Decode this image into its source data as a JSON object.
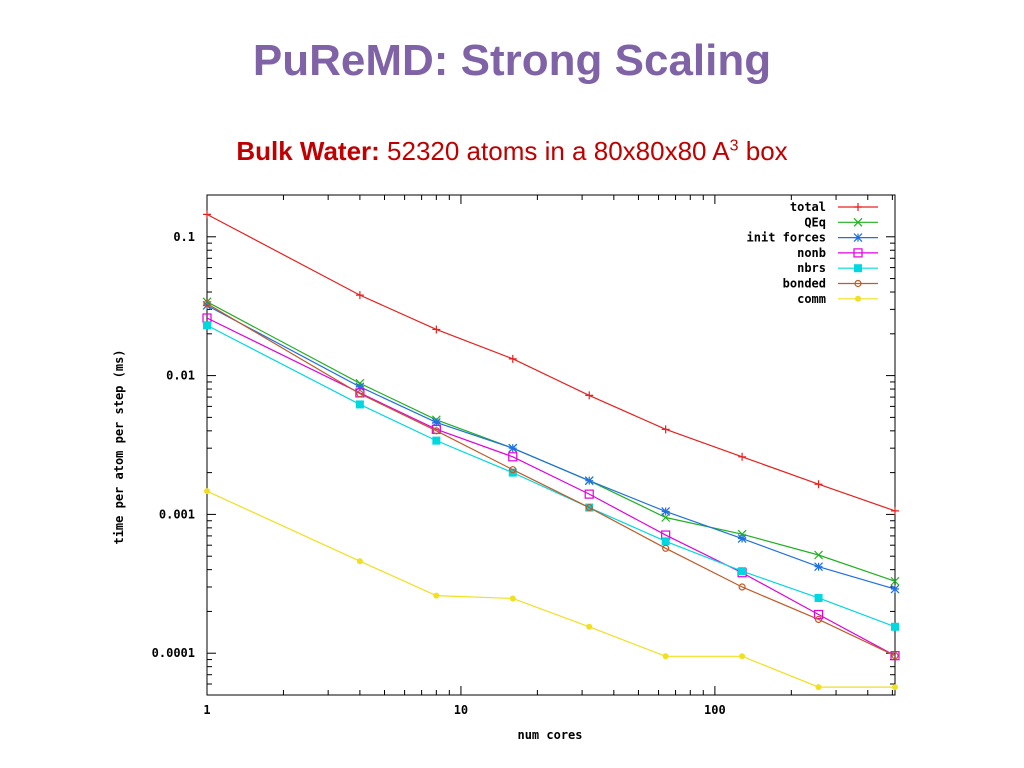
{
  "slide": {
    "title": "PuReMD: Strong Scaling",
    "subtitle_bold": "Bulk Water:",
    "subtitle_text": " 52320 atoms in a 80x80x80 A",
    "subtitle_sup": "3",
    "subtitle_tail": " box"
  },
  "chart_data": {
    "type": "line",
    "xlabel": "num cores",
    "ylabel": "time per atom per step (ms)",
    "x_scale": "log",
    "y_scale": "log",
    "xlim": [
      1,
      512
    ],
    "ylim": [
      5e-05,
      0.2
    ],
    "x_ticks": [
      {
        "value": 1,
        "label": "1"
      },
      {
        "value": 10,
        "label": "10"
      },
      {
        "value": 100,
        "label": "100"
      }
    ],
    "y_ticks": [
      {
        "value": 0.1,
        "label": "0.1"
      },
      {
        "value": 0.01,
        "label": "0.01"
      },
      {
        "value": 0.001,
        "label": "0.001"
      },
      {
        "value": 0.0001,
        "label": "0.0001"
      }
    ],
    "legend_position": "top-right",
    "grid": false,
    "x": [
      1,
      4,
      8,
      16,
      32,
      64,
      128,
      256,
      512
    ],
    "series": [
      {
        "name": "total",
        "color": "#e8201e",
        "marker": "plus",
        "values": [
          0.145,
          0.038,
          0.0215,
          0.0132,
          0.0072,
          0.0041,
          0.0026,
          0.00165,
          0.00106
        ]
      },
      {
        "name": "QEq",
        "color": "#20b020",
        "marker": "x",
        "values": [
          0.034,
          0.0088,
          0.0048,
          0.003,
          0.00175,
          0.00095,
          0.00072,
          0.00051,
          0.00033
        ]
      },
      {
        "name": "init forces",
        "color": "#2070e0",
        "marker": "star",
        "values": [
          0.032,
          0.0083,
          0.0046,
          0.003,
          0.00175,
          0.00105,
          0.00067,
          0.00042,
          0.00029
        ]
      },
      {
        "name": "nonb",
        "color": "#e000e0",
        "marker": "square-open",
        "values": [
          0.026,
          0.0075,
          0.0041,
          0.0026,
          0.0014,
          0.00071,
          0.00038,
          0.00019,
          9.6e-05
        ]
      },
      {
        "name": "nbrs",
        "color": "#00d8e0",
        "marker": "square-filled",
        "values": [
          0.023,
          0.0062,
          0.0034,
          0.002,
          0.00112,
          0.00064,
          0.00039,
          0.00025,
          0.000155
        ]
      },
      {
        "name": "bonded",
        "color": "#c05a28",
        "marker": "circle-open",
        "values": [
          0.033,
          0.0074,
          0.004,
          0.0021,
          0.00112,
          0.00057,
          0.0003,
          0.000175,
          9.6e-05
        ]
      },
      {
        "name": "comm",
        "color": "#f0e020",
        "marker": "circle-filled",
        "values": [
          0.00147,
          0.00046,
          0.00026,
          0.000248,
          0.000155,
          9.5e-05,
          9.5e-05,
          5.7e-05,
          5.7e-05
        ]
      }
    ]
  }
}
